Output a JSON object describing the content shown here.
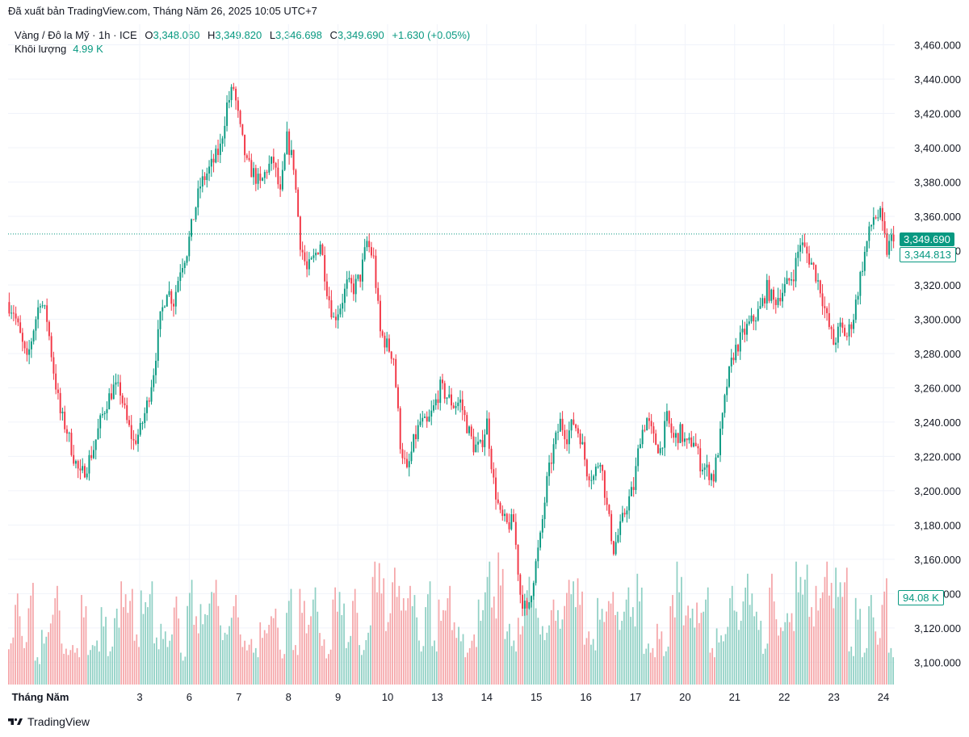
{
  "header": {
    "published": "Đã xuất bản TradingView.com, Tháng Năm 26, 2025 10:05 UTC+7"
  },
  "legend": {
    "symbol": "Vàng / Đô la Mỹ · 1h · ICE",
    "o_label": "O",
    "o_value": "3,348.060",
    "h_label": "H",
    "h_value": "3,349.820",
    "l_label": "L",
    "l_value": "3,346.698",
    "c_label": "C",
    "c_value": "3,349.690",
    "change": "+1.630 (+0.05%)",
    "volume_label": "Khối lượng",
    "volume_value": "4.99 K"
  },
  "badges": {
    "last_price": "3,349.690",
    "indicator": "3,344.813",
    "volume": "94.08 K"
  },
  "brand": {
    "name": "TradingView"
  },
  "colors": {
    "up": "#089981",
    "down": "#f23645",
    "up_vol": "#8fd0c4",
    "down_vol": "#f5a5a8",
    "grid": "#f0f3fa"
  },
  "chart_data": {
    "type": "candlestick",
    "symbol": "XAUUSD",
    "interval": "1h",
    "y_axis": {
      "range": [
        3087,
        3472
      ],
      "ticks": [
        "3,460.000",
        "3,440.000",
        "3,420.000",
        "3,400.000",
        "3,380.000",
        "3,360.000",
        "3,340.000",
        "3,320.000",
        "3,300.000",
        "3,280.000",
        "3,260.000",
        "3,240.000",
        "3,220.000",
        "3,200.000",
        "3,180.000",
        "3,160.000",
        "3,140.000",
        "3,120.000",
        "3,100.000"
      ],
      "tick_values": [
        3460,
        3440,
        3420,
        3400,
        3380,
        3360,
        3340,
        3320,
        3300,
        3280,
        3260,
        3240,
        3220,
        3200,
        3180,
        3160,
        3140,
        3120,
        3100
      ]
    },
    "x_axis": {
      "labels": [
        "Tháng Năm",
        "3",
        "6",
        "7",
        "8",
        "9",
        "10",
        "13",
        "14",
        "15",
        "16",
        "17",
        "20",
        "21",
        "22",
        "23",
        "24"
      ]
    },
    "last_price": 3349.69,
    "close_path": [
      3310,
      3305,
      3290,
      3275,
      3295,
      3312,
      3300,
      3270,
      3245,
      3235,
      3220,
      3208,
      3215,
      3225,
      3240,
      3252,
      3260,
      3258,
      3240,
      3228,
      3235,
      3250,
      3270,
      3300,
      3318,
      3310,
      3330,
      3340,
      3360,
      3378,
      3385,
      3392,
      3400,
      3425,
      3435,
      3410,
      3390,
      3385,
      3378,
      3388,
      3392,
      3372,
      3405,
      3390,
      3345,
      3328,
      3335,
      3345,
      3318,
      3300,
      3308,
      3320,
      3318,
      3325,
      3345,
      3335,
      3292,
      3285,
      3278,
      3228,
      3210,
      3228,
      3240,
      3238,
      3248,
      3260,
      3255,
      3250,
      3252,
      3238,
      3226,
      3225,
      3240,
      3205,
      3185,
      3180,
      3182,
      3140,
      3128,
      3150,
      3172,
      3205,
      3225,
      3240,
      3232,
      3240,
      3232,
      3212,
      3208,
      3220,
      3190,
      3166,
      3178,
      3192,
      3202,
      3232,
      3242,
      3230,
      3224,
      3242,
      3230,
      3234,
      3226,
      3230,
      3216,
      3212,
      3208,
      3232,
      3262,
      3280,
      3288,
      3295,
      3300,
      3306,
      3318,
      3310,
      3315,
      3320,
      3327,
      3345,
      3338,
      3330,
      3318,
      3300,
      3286,
      3295,
      3290,
      3302,
      3325,
      3345,
      3360,
      3360,
      3340,
      3349.69
    ],
    "volume_range": [
      0,
      100
    ],
    "volume": [
      31,
      60,
      32,
      67,
      18,
      36,
      46,
      65,
      27,
      26,
      24,
      59,
      26,
      29,
      51,
      25,
      50,
      68,
      63,
      33,
      62,
      68,
      31,
      40,
      33,
      58,
      21,
      69,
      45,
      53,
      61,
      69,
      39,
      44,
      59,
      33,
      30,
      24,
      41,
      45,
      50,
      23,
      63,
      26,
      63,
      45,
      64,
      34,
      23,
      64,
      61,
      32,
      63,
      26,
      39,
      81,
      80,
      47,
      77,
      65,
      65,
      59,
      29,
      68,
      29,
      56,
      65,
      41,
      38,
      24,
      33,
      56,
      81,
      58,
      87,
      40,
      29,
      44,
      71,
      67,
      44,
      39,
      56,
      49,
      69,
      68,
      70,
      35,
      30,
      57,
      55,
      61,
      48,
      64,
      51,
      73,
      27,
      24,
      40,
      25,
      59,
      81,
      52,
      50,
      54,
      64,
      24,
      37,
      38,
      65,
      48,
      73,
      60,
      48,
      27,
      73,
      43,
      47,
      47,
      81,
      79,
      51,
      65,
      81,
      67,
      77,
      77,
      25,
      57,
      24,
      59,
      35,
      70,
      24
    ]
  }
}
